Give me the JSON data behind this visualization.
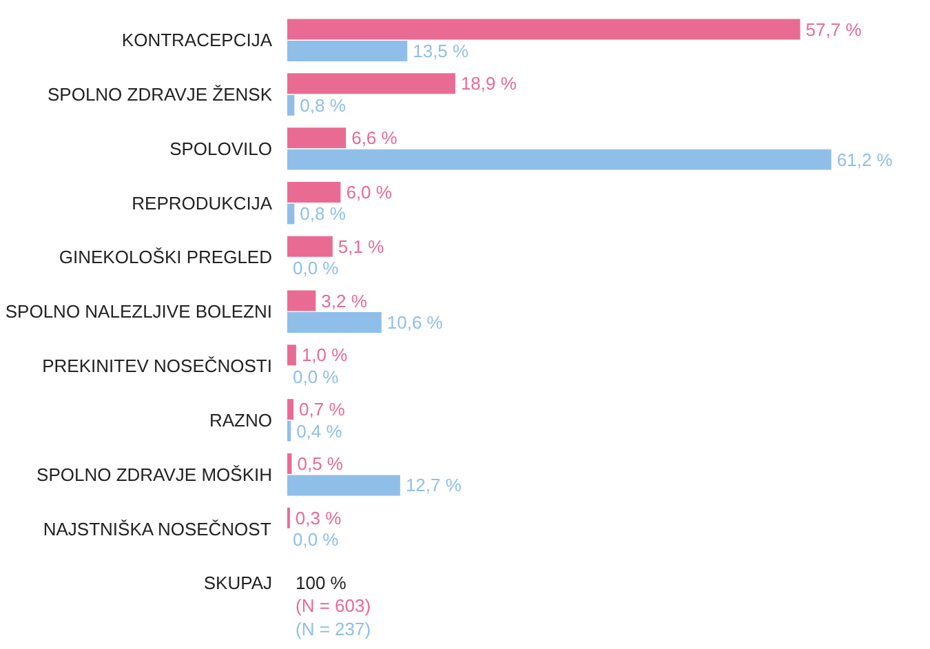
{
  "chart_data": {
    "type": "bar",
    "orientation": "horizontal",
    "tick_labels": "y",
    "grid": false,
    "categories": [
      "KONTRACEPCIJA",
      "SPOLNO ZDRAVJE ŽENSK",
      "SPOLOVILO",
      "REPRODUKCIJA",
      "GINEKOLOŠKI PREGLED",
      "SPOLNO NALEZLJIVE BOLEZNI",
      "PREKINITEV NOSEČNOSTI",
      "RAZNO",
      "SPOLNO ZDRAVJE MOŠKIH",
      "NAJSTNIŠKA NOSEČNOST",
      "SKUPAJ"
    ],
    "series": [
      {
        "color": "#e96b93",
        "values": [
          57.7,
          18.9,
          6.6,
          6.0,
          5.1,
          3.2,
          1.0,
          0.7,
          0.5,
          0.3,
          null
        ],
        "value_labels": [
          "57,7 %",
          "18,9 %",
          "6,6 %",
          "6,0 %",
          "5,1 %",
          "3,2 %",
          "1,0 %",
          "0,7 %",
          "0,5 %",
          "0,3 %",
          null
        ]
      },
      {
        "color": "#8fbfe8",
        "values": [
          13.5,
          0.8,
          61.2,
          0.8,
          0.0,
          10.6,
          0.0,
          0.4,
          12.7,
          0.0,
          null
        ],
        "value_labels": [
          "13,5 %",
          "0,8 %",
          "61,2 %",
          "0,8 %",
          "0,0 %",
          "10,6 %",
          "0,0 %",
          "0,4 %",
          "12,7 %",
          "0,0 %",
          null
        ]
      }
    ],
    "annotations": [
      "100 %",
      "(N = 603)",
      "(N = 237)"
    ]
  }
}
